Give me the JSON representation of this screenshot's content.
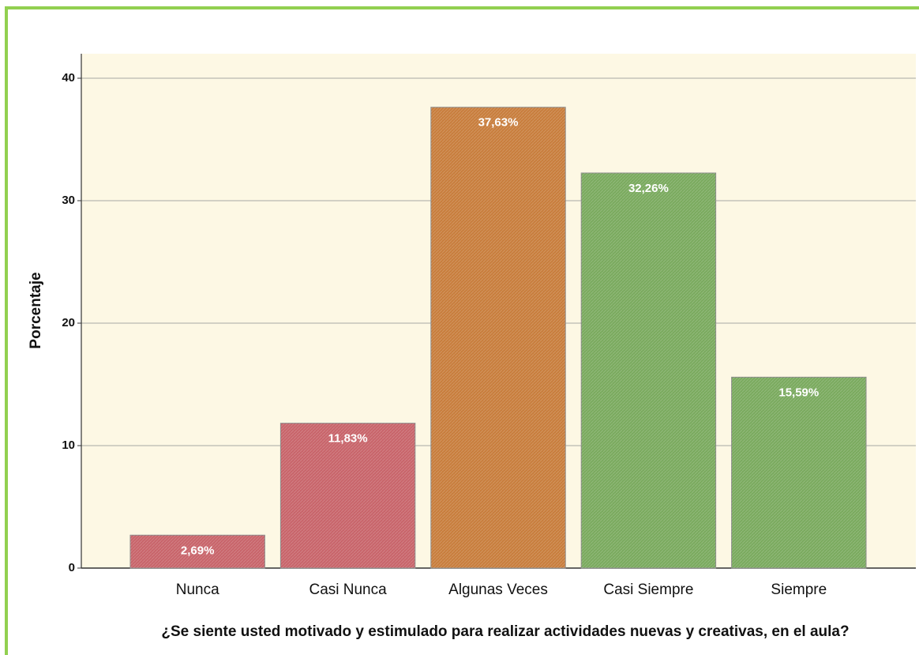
{
  "chart_data": {
    "type": "bar",
    "y_label": "Porcentaje",
    "x_label": "¿Se siente usted motivado y estimulado para realizar actividades nuevas y creativas, en el aula?",
    "categories": [
      "Nunca",
      "Casi Nunca",
      "Algunas Veces",
      "Casi Siempre",
      "Siempre"
    ],
    "values": [
      2.69,
      11.83,
      37.63,
      32.26,
      15.59
    ],
    "value_labels": [
      "2,69%",
      "11,83%",
      "37,63%",
      "32,26%",
      "15,59%"
    ],
    "colors": [
      "#c8646a",
      "#c8646a",
      "#c87d3c",
      "#7aaa5e",
      "#7aaa5e"
    ],
    "ylim": [
      0,
      42
    ],
    "yticks": [
      0,
      10,
      20,
      30,
      40
    ],
    "grid": true
  }
}
